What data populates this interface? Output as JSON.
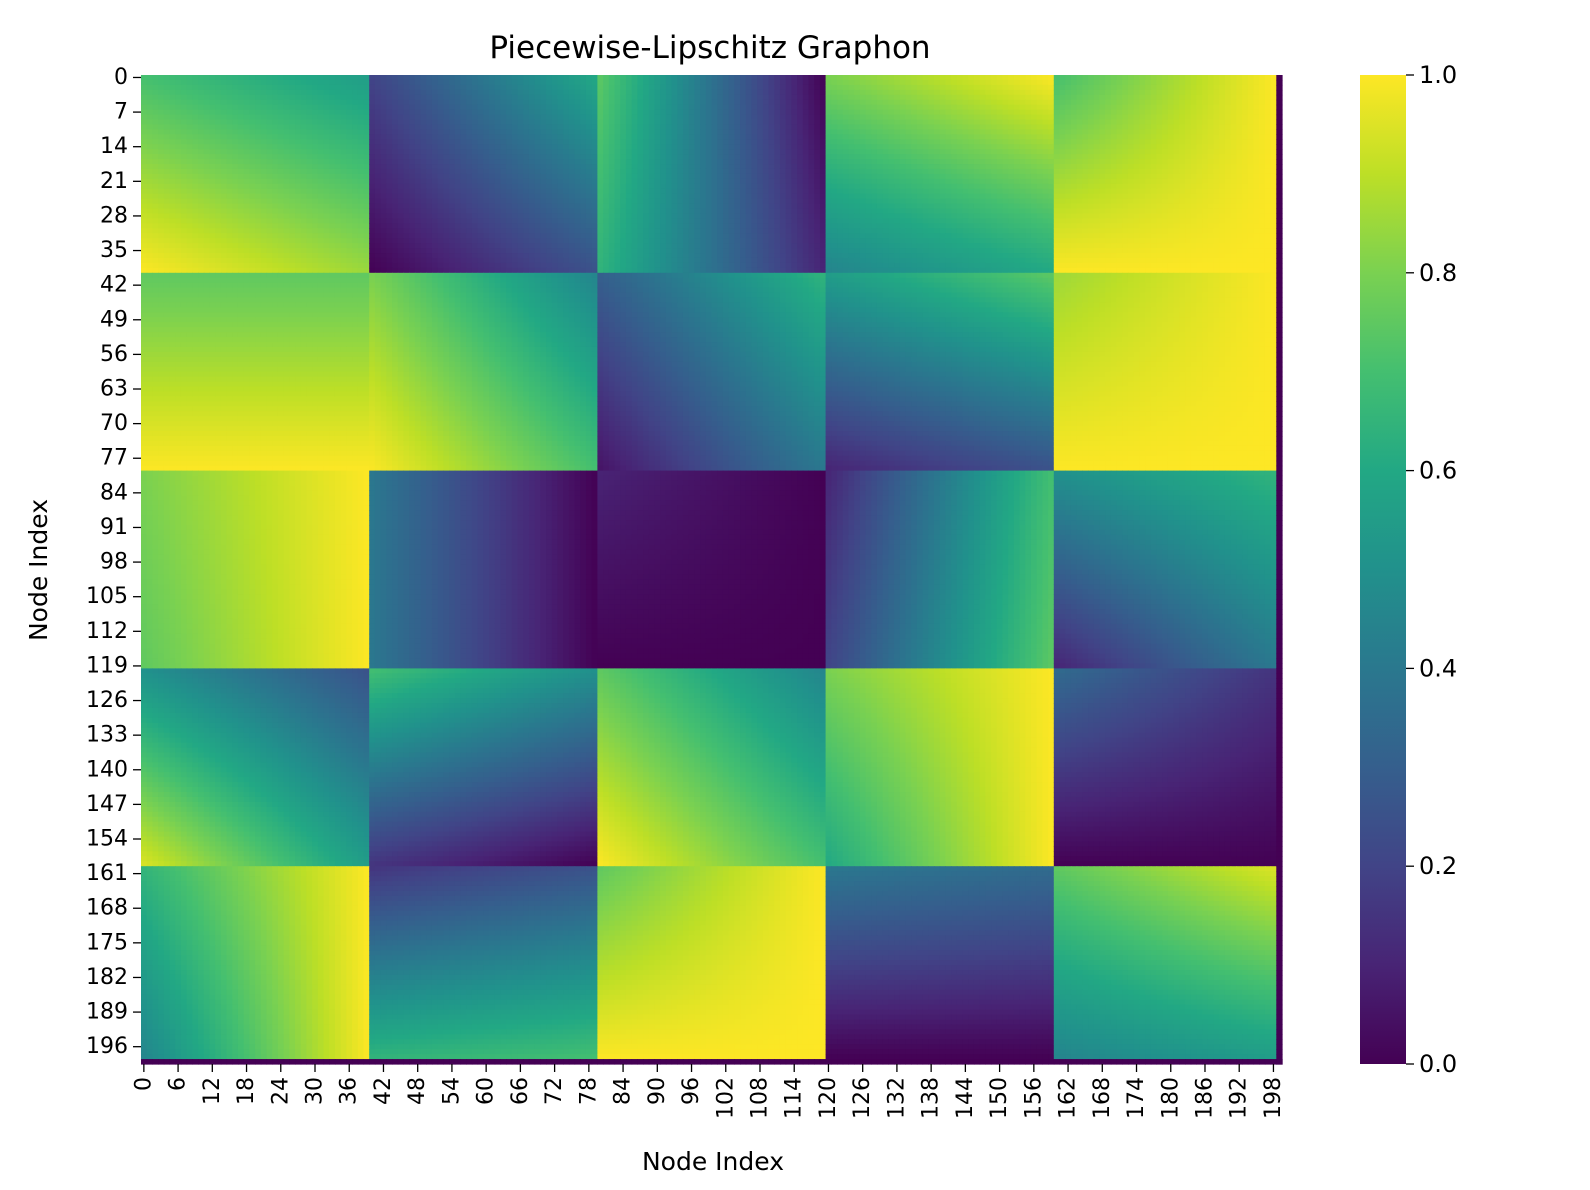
{
  "chart_data": {
    "type": "heatmap",
    "title": "Piecewise-Lipschitz Graphon",
    "xlabel": "Node Index",
    "ylabel": "Node Index",
    "n_nodes": 200,
    "block_boundaries": [
      0,
      40,
      80,
      120,
      160,
      199
    ],
    "colormap": "viridis",
    "colorbar": {
      "min": 0.0,
      "max": 1.0,
      "ticks": [
        "0.0",
        "0.2",
        "0.4",
        "0.6",
        "0.8",
        "1.0"
      ]
    },
    "x_ticks": [
      "0",
      "6",
      "12",
      "18",
      "24",
      "30",
      "36",
      "42",
      "48",
      "54",
      "60",
      "66",
      "72",
      "78",
      "84",
      "90",
      "96",
      "102",
      "108",
      "114",
      "120",
      "126",
      "132",
      "138",
      "144",
      "150",
      "156",
      "162",
      "168",
      "174",
      "180",
      "186",
      "192",
      "198"
    ],
    "y_ticks": [
      "0",
      "7",
      "14",
      "21",
      "28",
      "35",
      "42",
      "49",
      "56",
      "63",
      "70",
      "77",
      "84",
      "91",
      "98",
      "105",
      "112",
      "119",
      "126",
      "133",
      "140",
      "147",
      "154",
      "161",
      "168",
      "175",
      "182",
      "189",
      "196"
    ],
    "block_value_grid": [
      [
        [
          [
            0.7,
            0.55
          ],
          [
            1.0,
            0.85
          ]
        ],
        [
          [
            0.2,
            0.6
          ],
          [
            0.0,
            0.25
          ]
        ],
        [
          [
            0.75,
            0.0
          ],
          [
            0.65,
            0.1
          ]
        ],
        [
          [
            0.8,
            1.0
          ],
          [
            0.45,
            0.6
          ]
        ],
        [
          [
            0.7,
            1.0
          ],
          [
            1.0,
            1.0
          ]
        ]
      ],
      [
        [
          [
            0.75,
            0.75
          ],
          [
            1.0,
            1.0
          ]
        ],
        [
          [
            0.8,
            0.45
          ],
          [
            1.0,
            0.7
          ]
        ],
        [
          [
            0.3,
            0.65
          ],
          [
            0.05,
            0.4
          ]
        ],
        [
          [
            0.55,
            0.75
          ],
          [
            0.1,
            0.25
          ]
        ],
        [
          [
            0.85,
            1.0
          ],
          [
            1.0,
            1.0
          ]
        ]
      ],
      [
        [
          [
            0.8,
            1.0
          ],
          [
            0.75,
            1.0
          ]
        ],
        [
          [
            0.4,
            0.0
          ],
          [
            0.4,
            0.0
          ]
        ],
        [
          [
            0.1,
            0.0
          ],
          [
            0.0,
            0.0
          ]
        ],
        [
          [
            0.1,
            0.7
          ],
          [
            0.2,
            0.75
          ]
        ],
        [
          [
            0.5,
            0.65
          ],
          [
            0.1,
            0.4
          ]
        ]
      ],
      [
        [
          [
            0.5,
            0.25
          ],
          [
            0.95,
            0.55
          ]
        ],
        [
          [
            0.7,
            0.5
          ],
          [
            0.15,
            0.0
          ]
        ],
        [
          [
            0.75,
            0.45
          ],
          [
            1.0,
            0.7
          ]
        ],
        [
          [
            0.8,
            1.0
          ],
          [
            0.6,
            1.0
          ]
        ],
        [
          [
            0.35,
            0.15
          ],
          [
            0.0,
            0.0
          ]
        ]
      ],
      [
        [
          [
            0.65,
            1.0
          ],
          [
            0.45,
            1.0
          ]
        ],
        [
          [
            0.15,
            0.25
          ],
          [
            0.65,
            0.7
          ]
        ],
        [
          [
            0.75,
            1.0
          ],
          [
            1.0,
            1.0
          ]
        ],
        [
          [
            0.4,
            0.35
          ],
          [
            0.0,
            0.0
          ]
        ],
        [
          [
            0.75,
            0.95
          ],
          [
            0.45,
            0.55
          ]
        ]
      ]
    ]
  }
}
